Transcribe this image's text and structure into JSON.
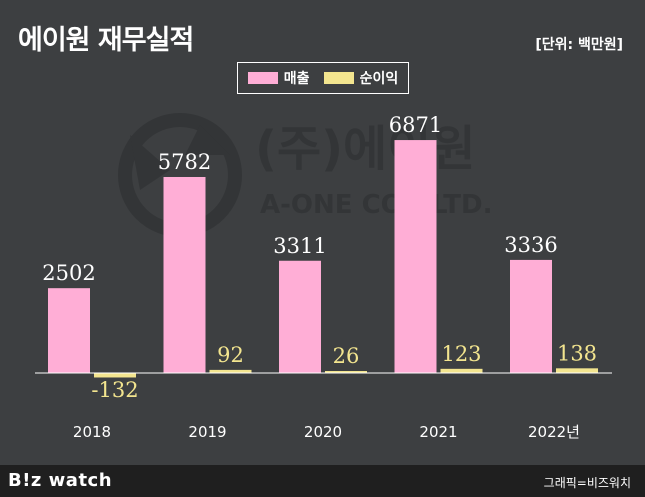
{
  "title": "에이원 재무실적",
  "unit": "[단위: 백만원]",
  "watermark": {
    "line1": "(주)에이원",
    "line2": "A-ONE CO., LTD."
  },
  "footer": {
    "logo": "B!z watch",
    "credit": "그래픽=비즈워치"
  },
  "colors": {
    "background": "#3d3f41",
    "sales": "#ffaed6",
    "net_income": "#f3e58f",
    "footer": "#1f1f1f"
  },
  "chart_data": {
    "type": "bar",
    "categories": [
      "2018",
      "2019",
      "2020",
      "2021",
      "2022년"
    ],
    "series": [
      {
        "name": "매출",
        "values": [
          2502,
          5782,
          3311,
          6871,
          3336
        ]
      },
      {
        "name": "순이익",
        "values": [
          -132,
          92,
          26,
          123,
          138
        ]
      }
    ],
    "data_labels": [
      [
        "2502",
        "5782",
        "3311",
        "6871",
        "3336"
      ],
      [
        "-132",
        "92",
        "26",
        "123",
        "138"
      ]
    ],
    "legend_placement": "top-center",
    "grid": false
  }
}
